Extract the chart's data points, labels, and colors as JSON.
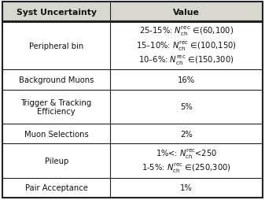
{
  "col_headers": [
    "Syst Uncertainty",
    "Value"
  ],
  "rows": [
    {
      "left": "Peripheral bin",
      "right_lines": [
        "25-15%: $N_{\\rm ch}^{\\rm rec}$ ∈(60,100)",
        "15–10%: $N_{\\rm ch}^{\\rm rec}$ ∈(100,150)",
        "10–6%: $N_{\\rm ch}^{\\rm rec}$ ∈(150,300)"
      ],
      "n_lines": 3
    },
    {
      "left": "Background Muons",
      "right_lines": [
        "16%"
      ],
      "n_lines": 1
    },
    {
      "left": "Trigger & Tracking\nEfficiency",
      "right_lines": [
        "5%"
      ],
      "n_lines": 2
    },
    {
      "left": "Muon Selections",
      "right_lines": [
        "2%"
      ],
      "n_lines": 1
    },
    {
      "left": "Pileup",
      "right_lines": [
        "1%<: $N_{\\rm ch}^{\\rm rec}$<250",
        "1-5%: $N_{\\rm ch}^{\\rm rec}$ ∈(250,300)"
      ],
      "n_lines": 2
    },
    {
      "left": "Pair Acceptance",
      "right_lines": [
        "1%"
      ],
      "n_lines": 1
    }
  ],
  "col_split": 0.415,
  "bg_color": "#ffffff",
  "header_bg": "#d8d8d0",
  "line_color": "#222222",
  "text_color": "#111111",
  "fontsize": 7.2,
  "header_fontsize": 7.8
}
